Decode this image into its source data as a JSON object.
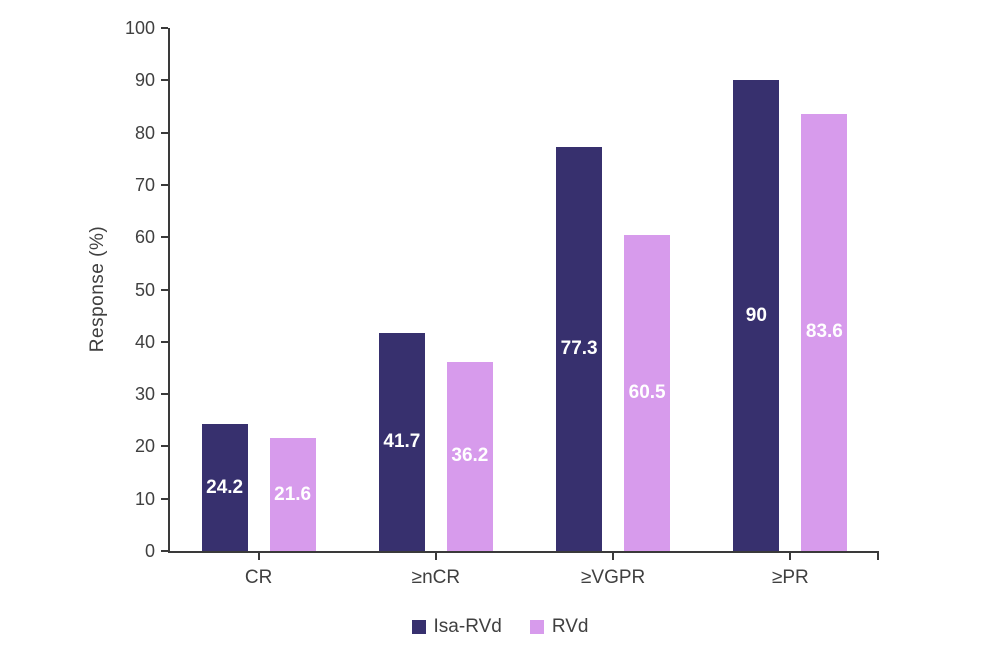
{
  "chart_data": {
    "type": "bar",
    "title": "",
    "xlabel": "",
    "ylabel": "Response (%)",
    "categories": [
      "CR",
      "≥nCR",
      "≥VGPR",
      "≥PR"
    ],
    "series": [
      {
        "name": "Isa-RVd",
        "color": "#37306e",
        "values": [
          24.2,
          41.7,
          77.3,
          90
        ]
      },
      {
        "name": "RVd",
        "color": "#d79bec",
        "values": [
          21.6,
          36.2,
          60.5,
          83.6
        ]
      }
    ],
    "ylim": [
      0,
      100
    ],
    "yticks": [
      0,
      10,
      20,
      30,
      40,
      50,
      60,
      70,
      80,
      90,
      100
    ],
    "grid": false,
    "legend_position": "bottom",
    "value_label_color": "#ffffff",
    "axis_color": "#3a3a3a",
    "text_color": "#404040"
  }
}
